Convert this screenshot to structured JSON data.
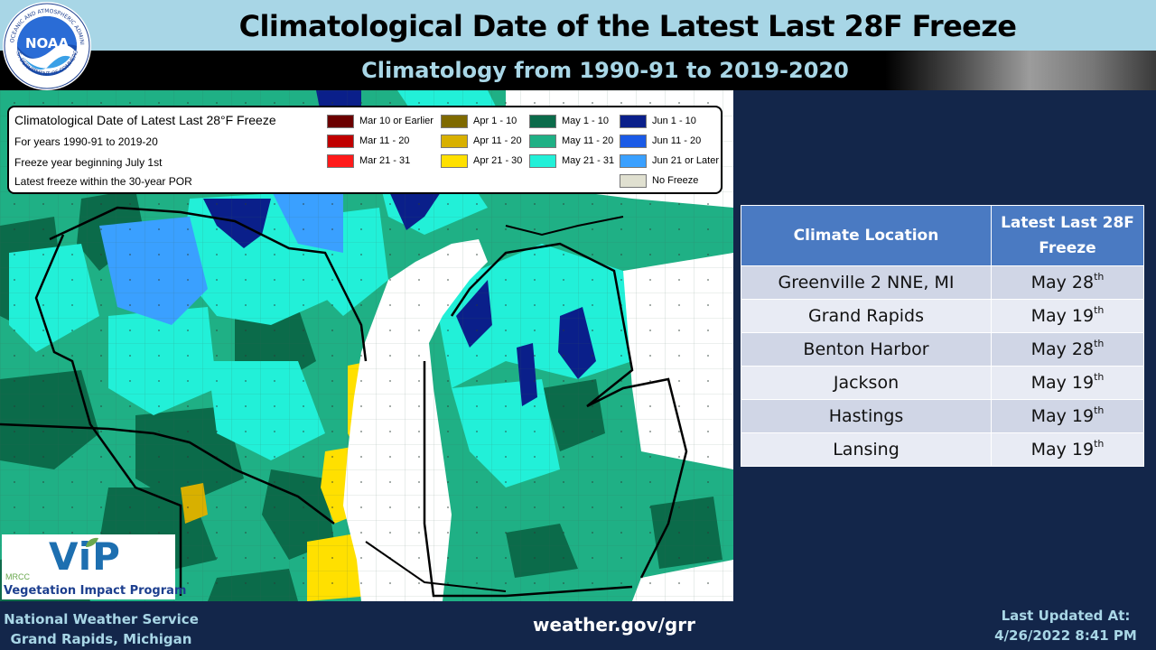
{
  "header": {
    "title": "Climatological Date of the Latest Last 28F Freeze",
    "subtitle": "Climatology from 1990-91 to 2019-2020",
    "logo": {
      "name": "noaa-logo",
      "ring_text_top": "NATIONAL OCEANIC AND ATMOSPHERIC ADMINISTRATION",
      "ring_text_bottom": "U.S. DEPARTMENT OF COMMERCE",
      "center_text": "NOAA"
    }
  },
  "map": {
    "legend": {
      "title": "Climatological Date of Latest Last 28°F Freeze",
      "lines": [
        "For years 1990-91 to 2019-20",
        "Freeze year beginning July 1st",
        "Latest freeze within the 30-year POR"
      ],
      "items": [
        {
          "label": "Mar 10 or Earlier",
          "color": "#6b0000"
        },
        {
          "label": "Mar 11 - 20",
          "color": "#c00000"
        },
        {
          "label": "Mar 21 - 31",
          "color": "#ff1a1a"
        },
        {
          "label": "Apr 1 - 10",
          "color": "#7f6a00"
        },
        {
          "label": "Apr 11 - 20",
          "color": "#d8b000"
        },
        {
          "label": "Apr 21 - 30",
          "color": "#ffe000"
        },
        {
          "label": "May 1 - 10",
          "color": "#0b6b4a"
        },
        {
          "label": "May 11 - 20",
          "color": "#1fb085"
        },
        {
          "label": "May 21 - 31",
          "color": "#22f0d8"
        },
        {
          "label": "Jun 1 - 10",
          "color": "#0a1f8a"
        },
        {
          "label": "Jun 11 - 20",
          "color": "#1a5ae6"
        },
        {
          "label": "Jun 21 or Later",
          "color": "#3aa0ff"
        },
        {
          "label": "No Freeze",
          "color": "#e0e0d0"
        }
      ]
    },
    "vip_logo": {
      "mark": "ViP",
      "small_text": "MRCC",
      "caption": "Vegetation Impact Program",
      "color": "#1d6fb0"
    }
  },
  "table": {
    "headers": [
      "Climate Location",
      "Latest Last 28F Freeze"
    ],
    "rows": [
      {
        "location": "Greenville 2 NNE, MI",
        "month": "May",
        "day": "28",
        "suffix": "th"
      },
      {
        "location": "Grand Rapids",
        "month": "May",
        "day": "19",
        "suffix": "th"
      },
      {
        "location": "Benton Harbor",
        "month": "May",
        "day": "28",
        "suffix": "th"
      },
      {
        "location": "Jackson",
        "month": "May",
        "day": "19",
        "suffix": "th"
      },
      {
        "location": "Hastings",
        "month": "May",
        "day": "19",
        "suffix": "th"
      },
      {
        "location": "Lansing",
        "month": "May",
        "day": "19",
        "suffix": "th"
      }
    ]
  },
  "footer": {
    "office_line1": "National Weather Service",
    "office_line2": "Grand Rapids, Michigan",
    "url": "weather.gov/grr",
    "updated_label": "Last Updated At:",
    "updated_value": "4/26/2022 8:41 PM"
  }
}
